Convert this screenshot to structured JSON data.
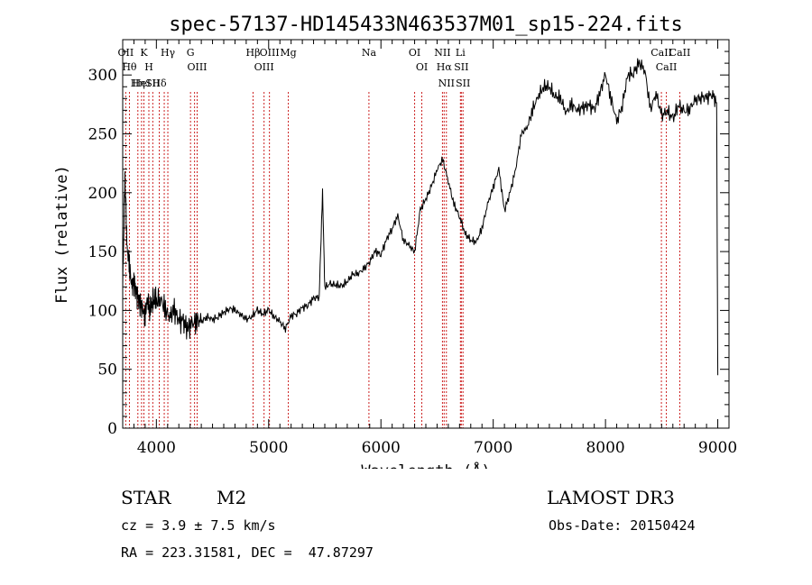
{
  "chart_data": {
    "type": "line",
    "title": "spec-57137-HD145433N463537M01_sp15-224.fits",
    "xlabel": "Wavelength (Å)",
    "ylabel": "Flux (relative)",
    "xlim": [
      3700,
      9100
    ],
    "ylim": [
      0,
      330
    ],
    "x_ticks": [
      4000,
      5000,
      6000,
      7000,
      8000,
      9000
    ],
    "y_ticks": [
      0,
      50,
      100,
      150,
      200,
      250,
      300
    ],
    "spectrum": {
      "x": [
        3700,
        3720,
        3740,
        3760,
        3780,
        3800,
        3820,
        3840,
        3860,
        3880,
        3900,
        3920,
        3940,
        3960,
        3980,
        4000,
        4040,
        4080,
        4120,
        4160,
        4200,
        4240,
        4280,
        4320,
        4360,
        4400,
        4450,
        4500,
        4550,
        4600,
        4650,
        4700,
        4750,
        4800,
        4850,
        4900,
        4950,
        5000,
        5050,
        5100,
        5150,
        5200,
        5250,
        5300,
        5350,
        5400,
        5450,
        5480,
        5500,
        5550,
        5600,
        5650,
        5700,
        5750,
        5800,
        5850,
        5900,
        5950,
        6000,
        6050,
        6100,
        6150,
        6200,
        6250,
        6300,
        6350,
        6400,
        6450,
        6500,
        6550,
        6600,
        6650,
        6700,
        6750,
        6800,
        6850,
        6900,
        6950,
        7000,
        7050,
        7100,
        7150,
        7200,
        7250,
        7300,
        7350,
        7400,
        7450,
        7500,
        7550,
        7600,
        7650,
        7700,
        7750,
        7800,
        7850,
        7900,
        7950,
        8000,
        8050,
        8100,
        8150,
        8200,
        8250,
        8300,
        8350,
        8400,
        8450,
        8500,
        8550,
        8600,
        8650,
        8700,
        8750,
        8800,
        8850,
        8900,
        8950,
        8990,
        9000
      ],
      "y": [
        120,
        215,
        150,
        140,
        120,
        125,
        115,
        110,
        105,
        100,
        95,
        110,
        100,
        105,
        110,
        108,
        110,
        100,
        95,
        100,
        92,
        90,
        85,
        88,
        92,
        90,
        95,
        92,
        95,
        98,
        102,
        100,
        97,
        92,
        95,
        100,
        97,
        100,
        95,
        90,
        85,
        95,
        98,
        102,
        105,
        110,
        112,
        200,
        120,
        122,
        122,
        120,
        125,
        130,
        132,
        135,
        142,
        150,
        148,
        160,
        170,
        180,
        160,
        155,
        150,
        185,
        195,
        205,
        220,
        228,
        210,
        190,
        180,
        165,
        160,
        158,
        170,
        190,
        205,
        220,
        185,
        200,
        220,
        250,
        255,
        270,
        282,
        290,
        290,
        282,
        280,
        268,
        275,
        270,
        272,
        275,
        270,
        285,
        300,
        280,
        260,
        275,
        300,
        302,
        310,
        305,
        270,
        285,
        265,
        270,
        262,
        275,
        268,
        272,
        278,
        282,
        280,
        285,
        275,
        45
      ]
    },
    "emission_lines": {
      "x": [
        3727,
        3760,
        3835,
        3868,
        3889,
        3933,
        3968,
        4026,
        4070,
        4102,
        4304,
        4340,
        4363,
        4861,
        4959,
        5007,
        5175,
        5893,
        6300,
        6364,
        6548,
        6563,
        6583,
        6708,
        6716,
        6731,
        8498,
        8542,
        8662
      ],
      "labels": [
        "OII",
        "Hθ",
        "Hη",
        "HeI",
        "K",
        "H",
        "SII",
        "Hδ",
        "",
        "Hγ",
        "G",
        "",
        "OIII",
        "Hβ",
        "OIII",
        "OIII",
        "Mg",
        "Na",
        "OI",
        "OI",
        "NII",
        "Hα",
        "NII",
        "Li",
        "SII",
        "SII",
        "CaII",
        "CaII",
        "CaII"
      ]
    }
  },
  "info": {
    "object_type": "STAR",
    "subclass": "M2",
    "survey": "LAMOST DR3",
    "redshift": "cz = 3.9 ± 7.5 km/s",
    "obs_date": "Obs-Date: 20150424",
    "coords": "RA = 223.31581, DEC =  47.87297"
  },
  "colors": {
    "line_marker": "#cc2222",
    "spectrum": "#000000"
  }
}
